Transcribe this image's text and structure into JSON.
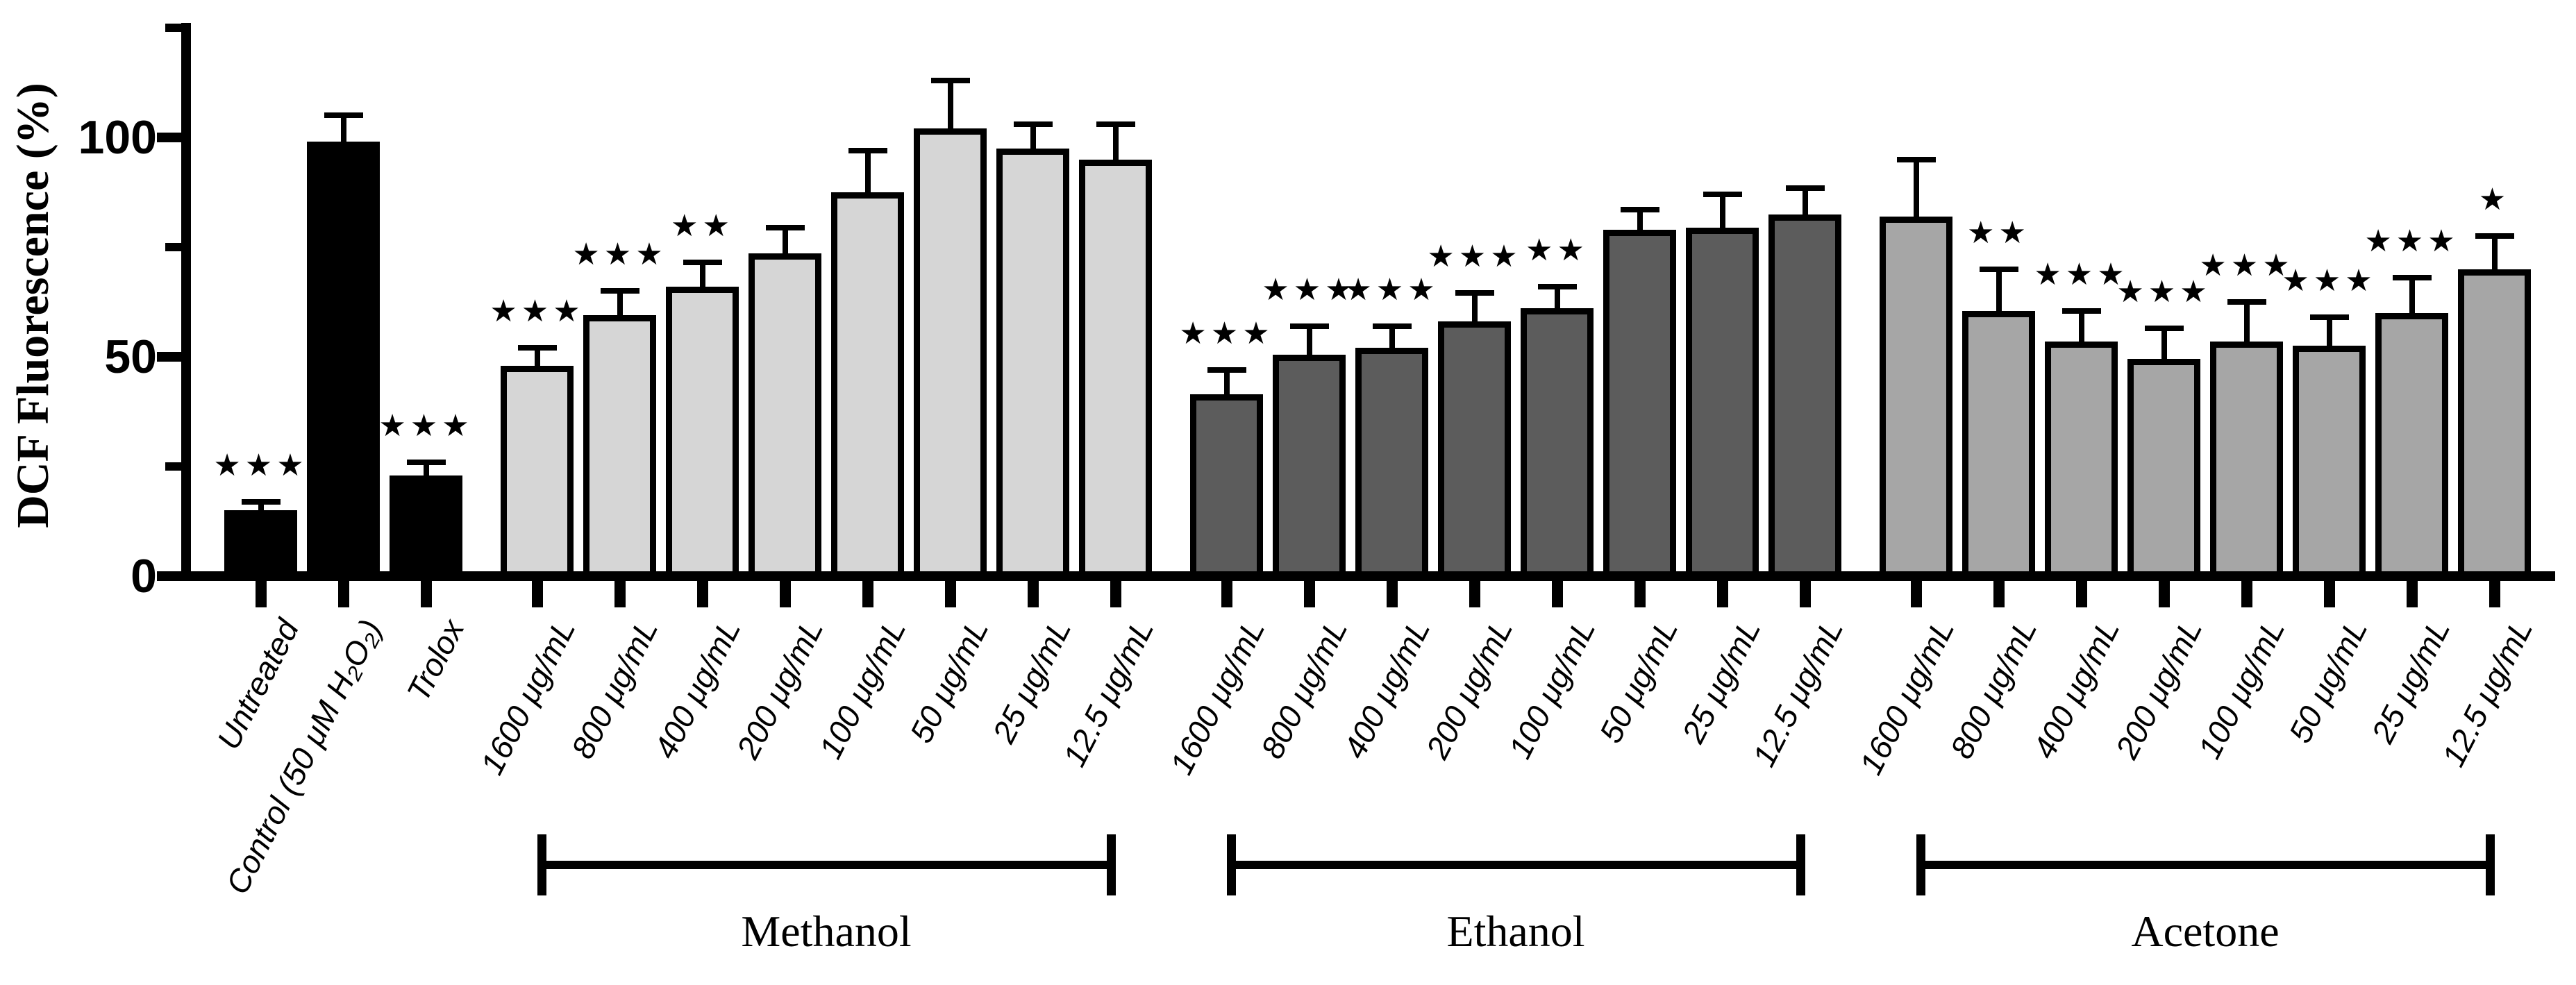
{
  "chart_data": {
    "type": "bar",
    "title": "",
    "ylabel": "DCF Fluorescence (%)",
    "xlabel": "",
    "ylim": [
      0,
      125
    ],
    "yticks_major": [
      0,
      50,
      100
    ],
    "yticks_minor": [
      25,
      75,
      125
    ],
    "grid": false,
    "legend": "none",
    "bar_outline_color": "#000000",
    "significance_symbol": "★",
    "groups": [
      {
        "name": "",
        "color": "#000000",
        "bars": [
          {
            "label": "Untreated",
            "value": 15,
            "error": 2,
            "significance": "***"
          },
          {
            "label": "Control (50 μM H₂O₂)",
            "value": 99,
            "error": 6,
            "significance": ""
          },
          {
            "label": "Trolox",
            "value": 23,
            "error": 3,
            "significance": "***"
          }
        ]
      },
      {
        "name": "Methanol",
        "color": "#d6d6d6",
        "bars": [
          {
            "label": "1600 μg/mL",
            "value": 48,
            "error": 4,
            "significance": "***"
          },
          {
            "label": "800 μg/mL",
            "value": 59.5,
            "error": 5.5,
            "significance": "***"
          },
          {
            "label": "400 μg/mL",
            "value": 66,
            "error": 5.5,
            "significance": "**"
          },
          {
            "label": "200 μg/mL",
            "value": 73.5,
            "error": 6,
            "significance": ""
          },
          {
            "label": "100 μg/mL",
            "value": 87.5,
            "error": 9.5,
            "significance": ""
          },
          {
            "label": "50 μg/mL",
            "value": 102,
            "error": 11,
            "significance": ""
          },
          {
            "label": "25 μg/mL",
            "value": 97.5,
            "error": 5.5,
            "significance": ""
          },
          {
            "label": "12.5 μg/mL",
            "value": 95,
            "error": 8,
            "significance": ""
          }
        ]
      },
      {
        "name": "Ethanol",
        "color": "#5c5c5c",
        "bars": [
          {
            "label": "1600 μg/mL",
            "value": 41.5,
            "error": 5.5,
            "significance": "***"
          },
          {
            "label": "800 μg/mL",
            "value": 50.5,
            "error": 6.5,
            "significance": "***"
          },
          {
            "label": "400 μg/mL",
            "value": 52,
            "error": 5,
            "significance": "***"
          },
          {
            "label": "200 μg/mL",
            "value": 58,
            "error": 6.5,
            "significance": "***"
          },
          {
            "label": "100 μg/mL",
            "value": 61,
            "error": 5,
            "significance": "**"
          },
          {
            "label": "50 μg/mL",
            "value": 79,
            "error": 4.5,
            "significance": ""
          },
          {
            "label": "25 μg/mL",
            "value": 79.5,
            "error": 7.5,
            "significance": ""
          },
          {
            "label": "12.5 μg/mL",
            "value": 82.5,
            "error": 6,
            "significance": ""
          }
        ]
      },
      {
        "name": "Acetone",
        "color": "#a6a6a6",
        "bars": [
          {
            "label": "1600 μg/mL",
            "value": 82,
            "error": 13,
            "significance": ""
          },
          {
            "label": "800 μg/mL",
            "value": 60.5,
            "error": 9.5,
            "significance": "**"
          },
          {
            "label": "400 μg/mL",
            "value": 53.5,
            "error": 7,
            "significance": "***"
          },
          {
            "label": "200 μg/mL",
            "value": 49.5,
            "error": 7,
            "significance": "***"
          },
          {
            "label": "100 μg/mL",
            "value": 53.5,
            "error": 9,
            "significance": "***"
          },
          {
            "label": "50 μg/mL",
            "value": 52.5,
            "error": 6.5,
            "significance": "***"
          },
          {
            "label": "25 μg/mL",
            "value": 60,
            "error": 8,
            "significance": "***"
          },
          {
            "label": "12.5 μg/mL",
            "value": 70,
            "error": 7.5,
            "significance": "*"
          }
        ]
      }
    ]
  }
}
